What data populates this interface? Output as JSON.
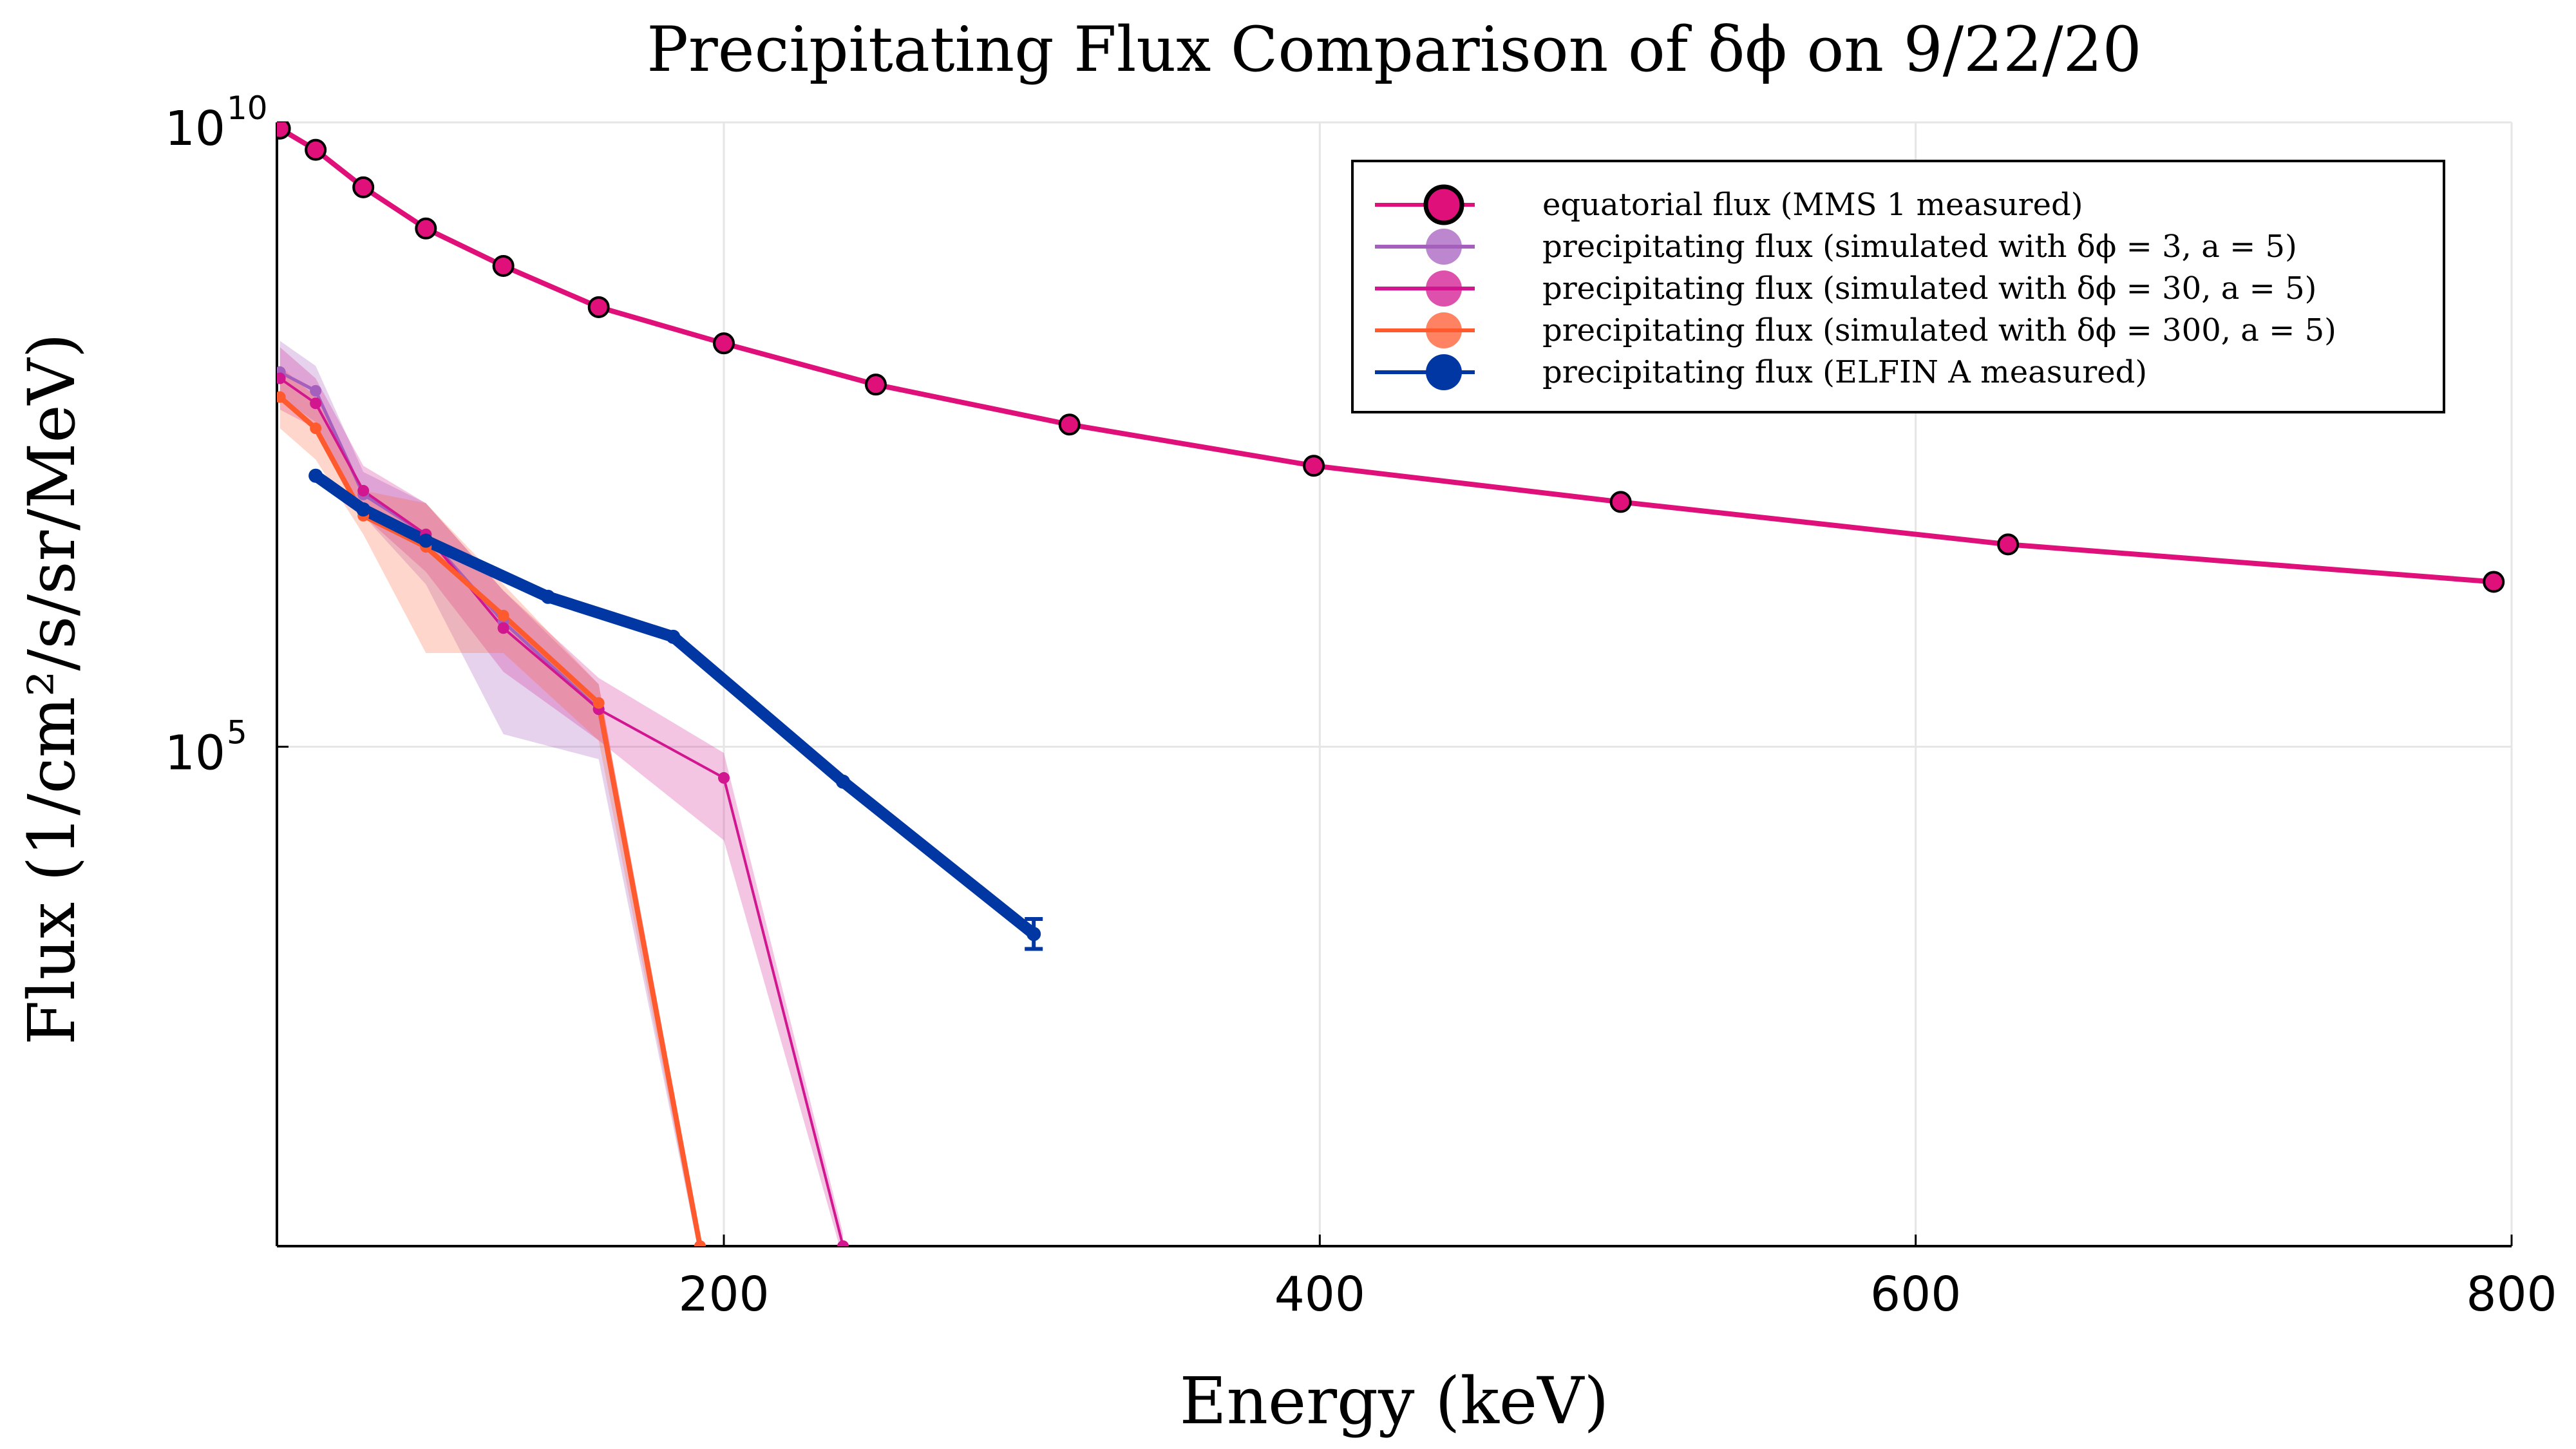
{
  "chart_data": {
    "type": "line",
    "title": "Precipitating Flux Comparison of δϕ on 9/22/20",
    "xlabel": "Energy (keV)",
    "ylabel": "Flux (1/cm²/s/sr/MeV)",
    "xlim": [
      50,
      800
    ],
    "ylim_log10": [
      1,
      10
    ],
    "yscale": "log",
    "grid": true,
    "legend_position": "top-right",
    "x_ticks": [
      {
        "value": 200,
        "label": "200"
      },
      {
        "value": 400,
        "label": "400"
      },
      {
        "value": 600,
        "label": "600"
      },
      {
        "value": 800,
        "label": "800"
      }
    ],
    "y_ticks": [
      {
        "log10": 5,
        "base": "10",
        "exp": "5"
      },
      {
        "log10": 10,
        "base": "10",
        "exp": "10"
      }
    ],
    "series": [
      {
        "name": "equatorial flux (MMS 1 measured)",
        "color": "#e0107a",
        "marker": "circle",
        "x": [
          51,
          63,
          79,
          100,
          126,
          158,
          200,
          251,
          316,
          398,
          501,
          631,
          794
        ],
        "log10_y": [
          9.95,
          9.78,
          9.48,
          9.15,
          8.85,
          8.52,
          8.23,
          7.9,
          7.58,
          7.25,
          6.96,
          6.62,
          6.32
        ]
      },
      {
        "name": "precipitating flux (simulated with δϕ = 3, a = 5)",
        "color": "#a55fbd",
        "marker": "circle",
        "x": [
          51,
          63,
          79,
          100,
          126,
          158,
          192
        ],
        "log10_y": [
          8.0,
          7.85,
          7.02,
          6.7,
          6.0,
          5.3,
          1.0
        ],
        "band_low": [
          7.8,
          7.6,
          6.85,
          6.3,
          5.1,
          4.9,
          0.9
        ],
        "band_high": [
          8.25,
          8.05,
          7.2,
          6.95,
          6.25,
          5.5,
          1.1
        ]
      },
      {
        "name": "precipitating flux (simulated with δϕ = 30, a = 5)",
        "color": "#d1168f",
        "marker": "circle",
        "x": [
          51,
          63,
          79,
          100,
          126,
          158,
          200,
          240
        ],
        "log10_y": [
          7.95,
          7.75,
          7.05,
          6.7,
          5.95,
          5.3,
          4.75,
          1.0
        ],
        "band_low": [
          7.7,
          7.55,
          6.85,
          6.4,
          5.6,
          5.05,
          4.25,
          0.9
        ],
        "band_high": [
          8.2,
          7.95,
          7.25,
          6.95,
          6.25,
          5.55,
          4.95,
          1.1
        ]
      },
      {
        "name": "precipitating flux (simulated with δϕ = 300, a = 5)",
        "color": "#ff5a2e",
        "marker": "circle",
        "x": [
          51,
          63,
          79,
          100,
          126,
          158,
          192
        ],
        "log10_y": [
          7.8,
          7.55,
          6.85,
          6.6,
          6.05,
          5.35,
          1.0
        ],
        "band_low": [
          7.55,
          7.3,
          6.7,
          5.75,
          5.75,
          5.05,
          0.9
        ],
        "band_high": [
          8.05,
          7.8,
          7.05,
          6.95,
          6.3,
          5.5,
          1.1
        ]
      },
      {
        "name": "precipitating flux (ELFIN A measured)",
        "color": "#0037a3",
        "marker": "circle",
        "x": [
          63,
          79,
          100,
          141,
          183,
          240,
          304
        ],
        "log10_y": [
          7.17,
          6.9,
          6.65,
          6.2,
          5.88,
          4.72,
          3.5
        ],
        "err": [
          0,
          0,
          0,
          0,
          0,
          0,
          0.12
        ]
      }
    ]
  }
}
